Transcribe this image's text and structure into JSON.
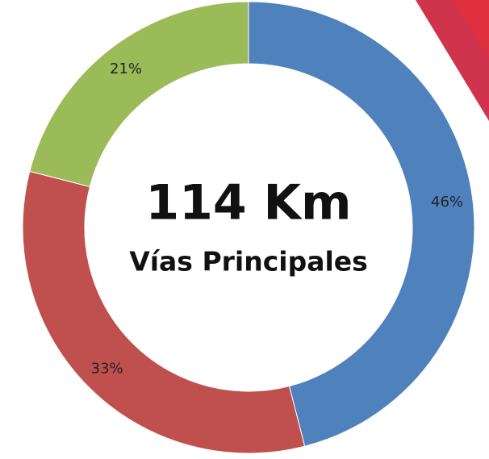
{
  "chart_data": {
    "type": "donut",
    "categories": [
      null,
      null,
      null
    ],
    "values": [
      46,
      33,
      21
    ],
    "value_labels": [
      "46%",
      "33%",
      "21%"
    ],
    "colors": [
      "#4f81bd",
      "#c0504d",
      "#9bbb59"
    ],
    "annotations": [
      "114 Km",
      "Vías Principales"
    ]
  }
}
